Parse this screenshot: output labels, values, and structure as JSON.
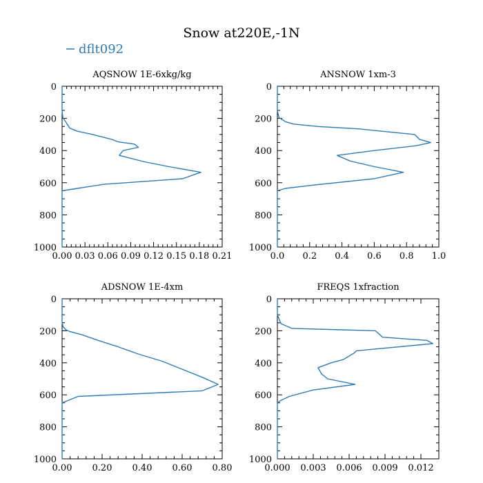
{
  "figure": {
    "title": "Snow at220E,-1N",
    "legend": {
      "entries": [
        {
          "label": "dflt092",
          "color": "#2e7ab5"
        }
      ],
      "placement": "top-left"
    }
  },
  "chart_data": [
    {
      "type": "line",
      "title": "AQSNOW  1E-6xkg/kg",
      "xlim": [
        0,
        0.21
      ],
      "ylim": [
        1000,
        0
      ],
      "xticks": [
        0,
        0.03,
        0.06,
        0.09,
        0.12,
        0.15,
        0.18,
        0.21
      ],
      "xtick_labels": [
        "0.00",
        "0.03",
        "0.06",
        "0.09",
        "0.12",
        "0.15",
        "0.18",
        "0.21"
      ],
      "yticks": [
        0,
        200,
        400,
        600,
        800,
        1000
      ],
      "ytick_labels": [
        "0",
        "200",
        "400",
        "600",
        "800",
        "1000"
      ],
      "grid": false,
      "series": [
        {
          "name": "dflt092",
          "color": "#2e7ab5",
          "x": [
            0,
            0,
            0.001,
            0.006,
            0.01,
            0.02,
            0.04,
            0.065,
            0.073,
            0.095,
            0.1,
            0.08,
            0.075,
            0.108,
            0.14,
            0.182,
            0.158,
            0.055,
            0.02,
            0,
            0
          ],
          "y": [
            0,
            150,
            195,
            230,
            260,
            280,
            300,
            330,
            345,
            360,
            380,
            400,
            430,
            470,
            500,
            535,
            575,
            610,
            635,
            650,
            1000
          ]
        }
      ]
    },
    {
      "type": "line",
      "title": "ANSNOW  1xm-3",
      "xlim": [
        0,
        1.0
      ],
      "ylim": [
        1000,
        0
      ],
      "xticks": [
        0,
        0.2,
        0.4,
        0.6,
        0.8,
        1.0
      ],
      "xtick_labels": [
        "0.0",
        "0.2",
        "0.4",
        "0.6",
        "0.8",
        "1.0"
      ],
      "yticks": [
        0,
        200,
        400,
        600,
        800,
        1000
      ],
      "ytick_labels": [
        "0",
        "200",
        "400",
        "600",
        "800",
        "1000"
      ],
      "grid": false,
      "series": [
        {
          "name": "dflt092",
          "color": "#2e7ab5",
          "x": [
            0,
            0,
            0.01,
            0.05,
            0.1,
            0.25,
            0.5,
            0.85,
            0.88,
            0.95,
            0.86,
            0.6,
            0.37,
            0.45,
            0.6,
            0.78,
            0.6,
            0.22,
            0.05,
            0,
            0
          ],
          "y": [
            0,
            150,
            195,
            220,
            235,
            250,
            265,
            300,
            330,
            350,
            370,
            400,
            430,
            465,
            500,
            535,
            575,
            615,
            635,
            650,
            1000
          ]
        }
      ]
    },
    {
      "type": "line",
      "title": "ADSNOW  1E-4xm",
      "xlim": [
        0,
        0.8
      ],
      "ylim": [
        1000,
        0
      ],
      "xticks": [
        0,
        0.2,
        0.4,
        0.6,
        0.8
      ],
      "xtick_labels": [
        "0.00",
        "0.20",
        "0.40",
        "0.60",
        "0.80"
      ],
      "yticks": [
        0,
        200,
        400,
        600,
        800,
        1000
      ],
      "ytick_labels": [
        "0",
        "200",
        "400",
        "600",
        "800",
        "1000"
      ],
      "grid": false,
      "series": [
        {
          "name": "dflt092",
          "color": "#2e7ab5",
          "x": [
            0,
            0,
            0.005,
            0.02,
            0.04,
            0.1,
            0.18,
            0.28,
            0.38,
            0.5,
            0.6,
            0.7,
            0.78,
            0.7,
            0.08,
            0.05,
            0.02,
            0,
            0
          ],
          "y": [
            0,
            150,
            175,
            195,
            205,
            225,
            260,
            300,
            345,
            390,
            440,
            490,
            535,
            575,
            610,
            625,
            640,
            650,
            1000
          ]
        }
      ]
    },
    {
      "type": "line",
      "title": "FREQS  1xfraction",
      "xlim": [
        0,
        0.0135
      ],
      "ylim": [
        1000,
        0
      ],
      "xticks": [
        0,
        0.003,
        0.006,
        0.009,
        0.012
      ],
      "xtick_labels": [
        "0.000",
        "0.003",
        "0.006",
        "0.009",
        "0.012"
      ],
      "yticks": [
        0,
        200,
        400,
        600,
        800,
        1000
      ],
      "ytick_labels": [
        "0",
        "200",
        "400",
        "600",
        "800",
        "1000"
      ],
      "grid": false,
      "series": [
        {
          "name": "dflt092",
          "color": "#2e7ab5",
          "x": [
            0,
            0,
            0.0003,
            0.0012,
            0.0082,
            0.0088,
            0.0125,
            0.013,
            0.0066,
            0.0064,
            0.0055,
            0.0045,
            0.0034,
            0.0037,
            0.0042,
            0.0065,
            0.003,
            0.001,
            0.0003,
            0,
            0
          ],
          "y": [
            0,
            100,
            155,
            185,
            200,
            240,
            260,
            280,
            325,
            340,
            380,
            400,
            430,
            470,
            500,
            535,
            570,
            610,
            635,
            650,
            1000
          ]
        }
      ]
    }
  ]
}
